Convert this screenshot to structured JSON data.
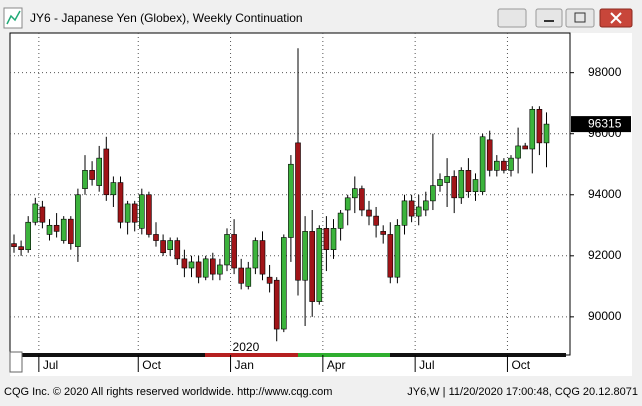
{
  "footer": {
    "left": "CQG Inc. © 2020 All rights reserved worldwide. http://www.cqg.com",
    "right": "JY6,W | 11/20/2020 17:00:48, CQG 20.12.8071"
  },
  "chart_data": {
    "type": "candlestick",
    "title": "JY6 - Japanese Yen (Globex), Weekly Continuation",
    "categories": [
      null,
      null,
      null,
      null,
      "Jul",
      null,
      null,
      null,
      null,
      null,
      null,
      null,
      null,
      null,
      null,
      null,
      null,
      null,
      "Oct",
      null,
      null,
      null,
      null,
      null,
      null,
      null,
      null,
      null,
      null,
      null,
      null,
      "Jan",
      null,
      null,
      null,
      null,
      null,
      null,
      null,
      null,
      null,
      null,
      null,
      null,
      "Apr",
      null,
      null,
      null,
      null,
      null,
      null,
      null,
      null,
      null,
      null,
      null,
      null,
      "Jul",
      null,
      null,
      null,
      null,
      null,
      null,
      null,
      null,
      null,
      null,
      null,
      null,
      "Oct",
      null,
      null,
      null,
      null,
      null
    ],
    "annotation": "2020",
    "open": [
      92400,
      92300,
      92200,
      93100,
      93600,
      92700,
      93000,
      92500,
      93200,
      92300,
      94200,
      94800,
      94300,
      95500,
      94000,
      94400,
      93100,
      93700,
      92900,
      94000,
      92700,
      92500,
      92200,
      92500,
      91900,
      91600,
      91800,
      91300,
      91900,
      91400,
      91700,
      92700,
      91600,
      91000,
      91600,
      92500,
      91300,
      91200,
      89600,
      92600,
      95700,
      91200,
      92800,
      90500,
      92900,
      92200,
      92900,
      93500,
      93900,
      94200,
      93500,
      93300,
      92800,
      92700,
      91300,
      93000,
      93800,
      93300,
      93500,
      93800,
      94300,
      94400,
      94600,
      93900,
      94800,
      94100,
      94100,
      95800,
      94800,
      95100,
      94800,
      95200,
      95600,
      95500,
      96800,
      95700
    ],
    "high": [
      92700,
      92500,
      93300,
      93900,
      93800,
      93200,
      93400,
      93300,
      93300,
      94200,
      95300,
      95100,
      95600,
      95900,
      94600,
      94600,
      93800,
      93800,
      94200,
      94100,
      93100,
      92700,
      92600,
      92600,
      92200,
      92000,
      92000,
      92000,
      92100,
      91900,
      92900,
      93200,
      91900,
      91800,
      92600,
      92800,
      91700,
      91300,
      92700,
      95300,
      98800,
      93300,
      93500,
      93000,
      93300,
      93200,
      93500,
      94000,
      94600,
      94300,
      93800,
      93600,
      93000,
      93100,
      93200,
      94000,
      94000,
      94000,
      94100,
      96000,
      94700,
      95200,
      94800,
      94900,
      95200,
      94700,
      96000,
      96100,
      95300,
      95200,
      95300,
      96200,
      95700,
      96900,
      96900,
      96700
    ],
    "low": [
      92100,
      92000,
      92100,
      93000,
      92900,
      92500,
      92600,
      92400,
      92200,
      91800,
      94000,
      94300,
      94100,
      93800,
      93600,
      92900,
      92700,
      92800,
      92700,
      92600,
      92300,
      92000,
      92000,
      91700,
      91300,
      91300,
      91100,
      91200,
      91200,
      91200,
      91500,
      91400,
      90900,
      90900,
      91400,
      91200,
      90800,
      89200,
      89500,
      91800,
      90700,
      89700,
      90000,
      90400,
      91500,
      91900,
      92500,
      93000,
      93400,
      93300,
      93000,
      92600,
      92400,
      91100,
      91100,
      92700,
      93100,
      93000,
      93300,
      93500,
      94100,
      93600,
      93400,
      93700,
      93900,
      93800,
      94000,
      94600,
      94600,
      94700,
      94600,
      94700,
      95500,
      94700,
      95300,
      94900
    ],
    "close": [
      92300,
      92200,
      93100,
      93700,
      93100,
      93000,
      92800,
      93200,
      92400,
      94000,
      94800,
      94500,
      95200,
      94000,
      94400,
      93100,
      93700,
      93100,
      94000,
      92700,
      92500,
      92100,
      92500,
      91900,
      91600,
      91800,
      91300,
      91900,
      91400,
      91700,
      92700,
      91600,
      91100,
      91600,
      92500,
      91400,
      91100,
      89600,
      92600,
      95000,
      91200,
      92800,
      90500,
      92900,
      92200,
      92900,
      93400,
      93900,
      94200,
      93500,
      93300,
      93000,
      92700,
      91300,
      93000,
      93800,
      93300,
      93600,
      93800,
      94300,
      94500,
      94600,
      93900,
      94800,
      94100,
      94500,
      95900,
      94800,
      95100,
      94800,
      95200,
      95600,
      95500,
      96800,
      95700,
      96315
    ],
    "up_color": "#3cb33c",
    "down_color": "#a01418",
    "ylim": [
      88750,
      99300
    ],
    "yticks": [
      90000,
      92000,
      94000,
      96000,
      98000
    ],
    "grid": true,
    "last_price": 96315
  }
}
